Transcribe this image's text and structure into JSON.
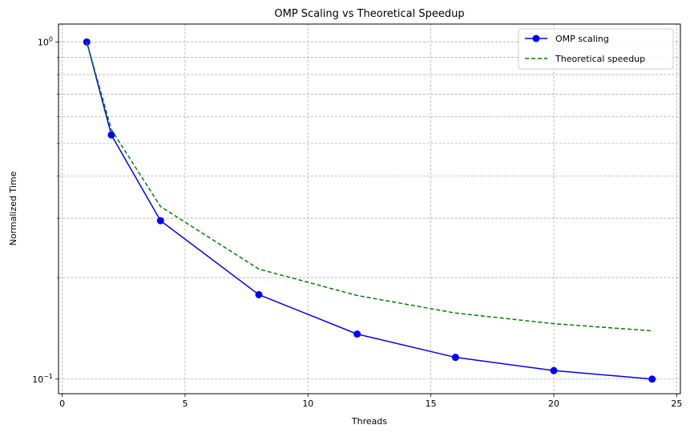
{
  "chart_data": {
    "type": "line",
    "title": "OMP Scaling vs Theoretical Speedup",
    "xlabel": "Threads",
    "ylabel": "Normalized Time",
    "yscale": "log",
    "xlim": [
      -0.15,
      25.15
    ],
    "ylim": [
      0.0905,
      1.13
    ],
    "x_ticks": [
      0,
      5,
      10,
      15,
      20,
      25
    ],
    "y_major_ticks": [
      {
        "value": 0.1,
        "base": "10",
        "exp": "−1"
      },
      {
        "value": 1,
        "base": "10",
        "exp": "0"
      }
    ],
    "y_minor_ticks": [
      0.2,
      0.3,
      0.4,
      0.5,
      0.6,
      0.7,
      0.8,
      0.9
    ],
    "grid": true,
    "legend_position": "top-right",
    "series": [
      {
        "name": "OMP scaling",
        "color": "#0000ff",
        "style": "solid",
        "marker": "circle",
        "x": [
          1,
          2,
          4,
          8,
          12,
          16,
          20,
          24
        ],
        "y": [
          1.0,
          0.53,
          0.295,
          0.178,
          0.136,
          0.116,
          0.106,
          0.1
        ]
      },
      {
        "name": "Theoretical speedup",
        "color": "#008000",
        "style": "dashed",
        "marker": "none",
        "x": [
          1,
          2,
          4,
          8,
          12,
          16,
          20,
          24
        ],
        "y": [
          1.0,
          0.55,
          0.325,
          0.212,
          0.177,
          0.157,
          0.146,
          0.139
        ]
      }
    ]
  }
}
